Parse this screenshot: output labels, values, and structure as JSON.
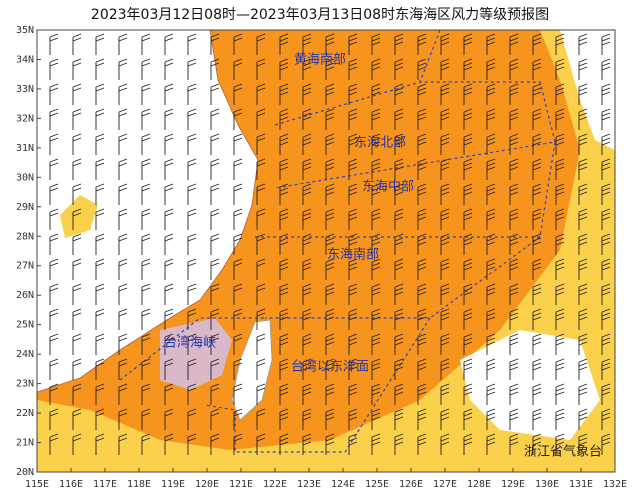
{
  "title": "2023年03月12日08时—2023年03月13日08时东海海区风力等级预报图",
  "lat_labels": [
    "35N",
    "34N",
    "33N",
    "32N",
    "31N",
    "30N",
    "29N",
    "28N",
    "27N",
    "26N",
    "25N",
    "24N",
    "23N",
    "22N",
    "21N",
    "20N"
  ],
  "lon_labels": [
    "115E",
    "116E",
    "117E",
    "118E",
    "119E",
    "120E",
    "121E",
    "122E",
    "123E",
    "124E",
    "125E",
    "126E",
    "127E",
    "128E",
    "129E",
    "130E",
    "131E",
    "132E"
  ],
  "regions": [
    {
      "label": "黄海南部"
    },
    {
      "label": "东海北部"
    },
    {
      "label": "东海中部"
    },
    {
      "label": "东海南部"
    },
    {
      "label": "台湾海峡"
    },
    {
      "label": "台湾以东洋面"
    }
  ],
  "credit": "浙江省气象台"
}
